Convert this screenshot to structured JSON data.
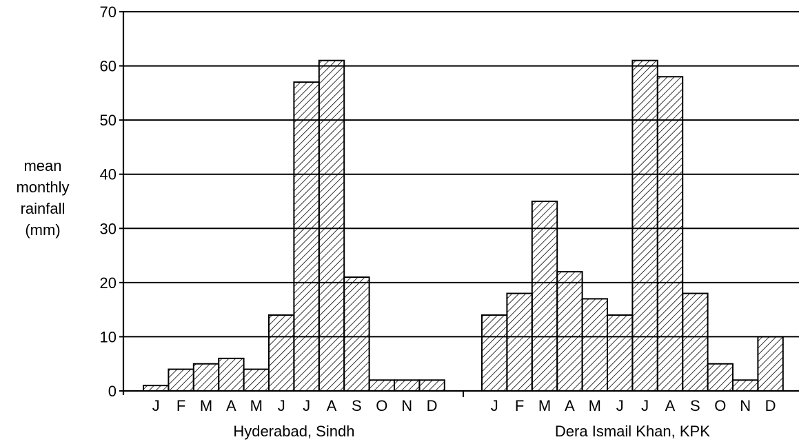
{
  "chart_data": {
    "type": "bar",
    "ylabel_lines": [
      "mean",
      "monthly",
      "rainfall",
      "(mm)"
    ],
    "ylim": [
      0,
      70
    ],
    "yticks": [
      0,
      10,
      20,
      30,
      40,
      50,
      60,
      70
    ],
    "grid": true,
    "fill_pattern": "diagonal-hatch",
    "colors": {
      "line": "#000000",
      "hatch": "#000000",
      "background": "#ffffff"
    },
    "groups": [
      {
        "name": "Hyderabad, Sindh",
        "categories": [
          "J",
          "F",
          "M",
          "A",
          "M",
          "J",
          "J",
          "A",
          "S",
          "O",
          "N",
          "D"
        ],
        "values": [
          1,
          4,
          5,
          6,
          4,
          14,
          57,
          61,
          21,
          2,
          2,
          2
        ]
      },
      {
        "name": "Dera Ismail Khan, KPK",
        "categories": [
          "J",
          "F",
          "M",
          "A",
          "M",
          "J",
          "J",
          "A",
          "S",
          "O",
          "N",
          "D"
        ],
        "values": [
          14,
          18,
          35,
          22,
          17,
          14,
          61,
          58,
          18,
          5,
          2,
          10
        ]
      }
    ]
  }
}
